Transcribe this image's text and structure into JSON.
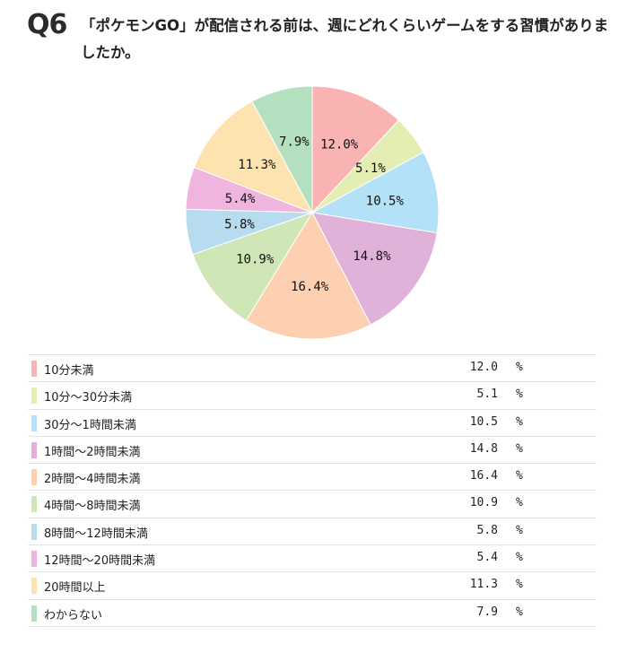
{
  "header": {
    "qnum": "Q6",
    "question": "「ポケモンGO」が配信される前は、週にどれくらいゲームをする習慣がありましたか。"
  },
  "chart_data": {
    "type": "pie",
    "unit": "%",
    "categories": [
      "10分未満",
      "10分〜30分未満",
      "30分〜1時間未満",
      "1時間〜2時間未満",
      "2時間〜4時間未満",
      "4時間〜8時間未満",
      "8時間〜12時間未満",
      "12時間〜20時間未満",
      "20時間以上",
      "わからない"
    ],
    "values": [
      12.0,
      5.1,
      10.5,
      14.8,
      16.4,
      10.9,
      5.8,
      5.4,
      11.3,
      7.9
    ],
    "labels": [
      "12.0%",
      "5.1%",
      "10.5%",
      "14.8%",
      "16.4%",
      "10.9%",
      "5.8%",
      "5.4%",
      "11.3%",
      "7.9%"
    ],
    "value_texts": [
      "12.0",
      "5.1",
      "10.5",
      "14.8",
      "16.4",
      "10.9",
      "5.8",
      "5.4",
      "11.3",
      "7.9"
    ],
    "colors": [
      "#f9b3b3",
      "#e5eeb2",
      "#b3e1f7",
      "#e1b2d9",
      "#fcd0b0",
      "#cfe7b6",
      "#b7dcf0",
      "#efb5df",
      "#fde3af",
      "#b4e0c0"
    ]
  }
}
